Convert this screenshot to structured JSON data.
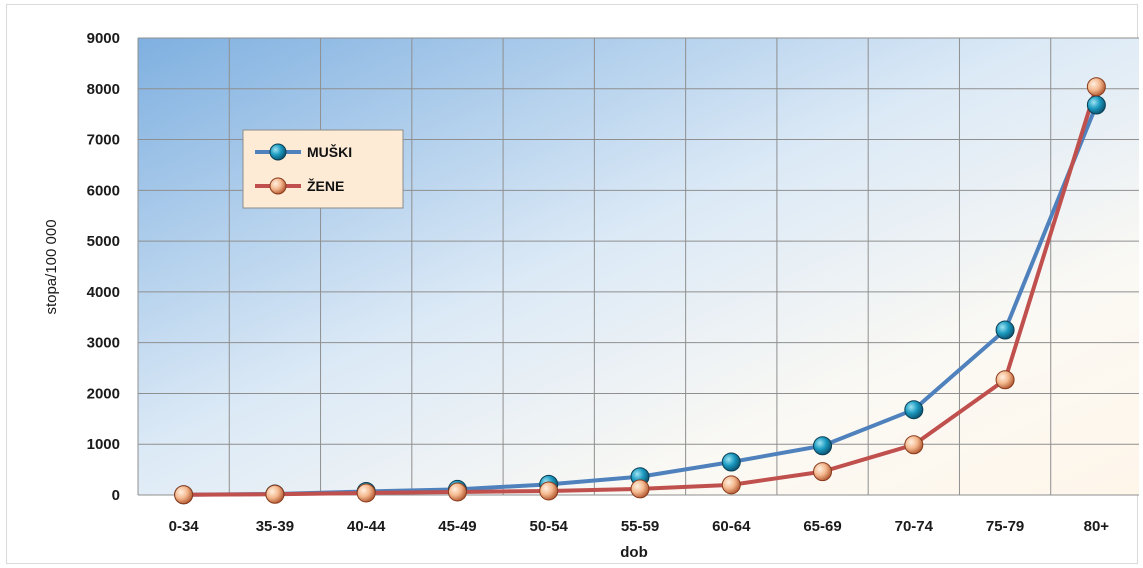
{
  "chart_data": {
    "type": "line",
    "xlabel": "dob",
    "ylabel": "stopa/100 000",
    "ylim": [
      0,
      9000
    ],
    "yticks": [
      0,
      1000,
      2000,
      3000,
      4000,
      5000,
      6000,
      7000,
      8000,
      9000
    ],
    "categories": [
      "0-34",
      "35-39",
      "40-44",
      "45-49",
      "50-54",
      "55-59",
      "60-64",
      "65-69",
      "70-74",
      "75-79",
      "80+"
    ],
    "grid": true,
    "legend_position": "upper-left",
    "series": [
      {
        "name": "MUŠKI",
        "color": "#4f81bd",
        "marker_color": "#1a8fb0",
        "values": [
          5,
          20,
          70,
          110,
          210,
          360,
          650,
          970,
          1680,
          3250,
          7680
        ]
      },
      {
        "name": "ŽENE",
        "color": "#c0504d",
        "marker_color": "#f0b48a",
        "values": [
          5,
          15,
          40,
          60,
          80,
          120,
          200,
          460,
          990,
          2270,
          8040
        ]
      }
    ]
  }
}
